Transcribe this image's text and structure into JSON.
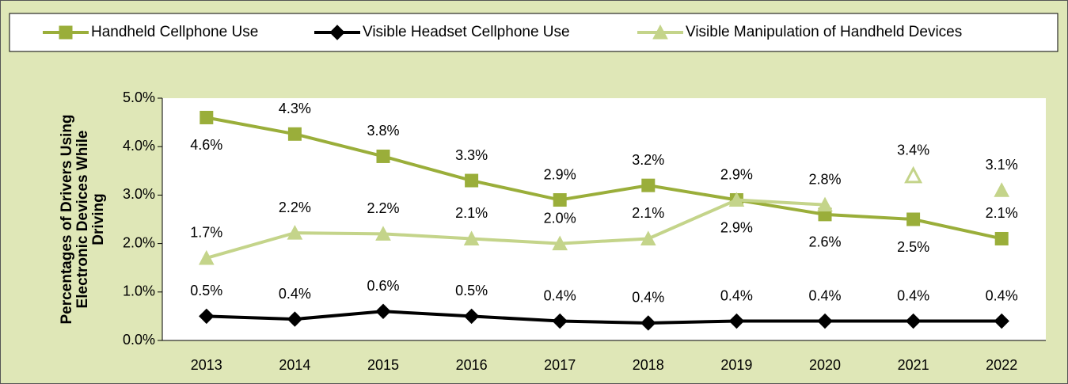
{
  "chart_data": {
    "type": "line",
    "ylabel": [
      "Percentages of Drivers Using",
      "Electronic Devices While",
      "Driving"
    ],
    "categories": [
      "2013",
      "2014",
      "2015",
      "2016",
      "2017",
      "2018",
      "2019",
      "2020",
      "2021",
      "2022"
    ],
    "series": [
      {
        "name": "Handheld Cellphone Use",
        "color": "#9aae3a",
        "marker": "square",
        "values": [
          4.6,
          4.26,
          3.8,
          3.3,
          2.9,
          3.2,
          2.9,
          2.6,
          2.5,
          2.1
        ],
        "value_labels": [
          "4.6%",
          "4.3%",
          "3.8%",
          "3.3%",
          "2.9%",
          "3.2%",
          "2.9%",
          "2.6%",
          "2.5%",
          "2.1%"
        ]
      },
      {
        "name": "Visible Headset Cellphone Use",
        "color": "#000000",
        "marker": "diamond",
        "values": [
          0.5,
          0.44,
          0.6,
          0.5,
          0.4,
          0.36,
          0.4,
          0.4,
          0.4,
          0.4
        ],
        "value_labels": [
          "0.5%",
          "0.4%",
          "0.6%",
          "0.5%",
          "0.4%",
          "0.4%",
          "0.4%",
          "0.4%",
          "0.4%",
          "0.4%"
        ]
      },
      {
        "name": "Visible Manipulation of Handheld Devices",
        "color": "#c4d48a",
        "marker": "triangle",
        "values": [
          1.7,
          2.22,
          2.2,
          2.1,
          2.0,
          2.1,
          2.9,
          2.8,
          3.4,
          3.1
        ],
        "value_labels": [
          "1.7%",
          "2.2%",
          "2.2%",
          "2.1%",
          "2.0%",
          "2.1%",
          "2.9%",
          "2.8%",
          "3.4%",
          "3.1%"
        ],
        "unconnected": [
          "2021",
          "2022"
        ],
        "hollow": [
          "2021"
        ]
      }
    ],
    "ylim": [
      0,
      5
    ],
    "yticks": [
      {
        "value": 0,
        "label": "0.0%"
      },
      {
        "value": 1,
        "label": "1.0%"
      },
      {
        "value": 2,
        "label": "2.0%"
      },
      {
        "value": 3,
        "label": "3.0%"
      },
      {
        "value": 4,
        "label": "4.0%"
      },
      {
        "value": 5,
        "label": "5.0%"
      }
    ],
    "legend": "top"
  }
}
